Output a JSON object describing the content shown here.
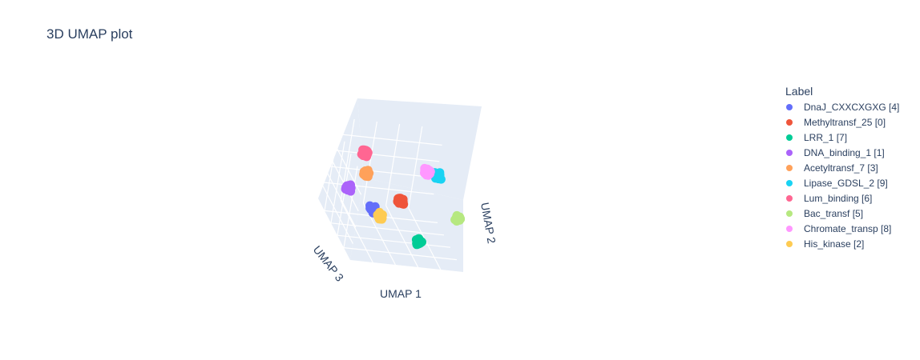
{
  "title": "3D UMAP plot",
  "legend": {
    "title": "Label"
  },
  "chart_data": {
    "type": "scatter",
    "dimensions": 3,
    "title": "3D UMAP plot",
    "axes": {
      "x": "UMAP 1",
      "y": "UMAP 2",
      "z": "UMAP 3"
    },
    "grid": true,
    "legend_placement": "right",
    "series": [
      {
        "name": "DnaJ_CXXCXGXG [4]",
        "color": "#636efa",
        "centroid": [
          0.3,
          0.3,
          0.48
        ]
      },
      {
        "name": "Methyltransf_25 [0]",
        "color": "#EF553B",
        "centroid": [
          0.52,
          0.46,
          0.45
        ]
      },
      {
        "name": "LRR_1 [7]",
        "color": "#00cc96",
        "centroid": [
          0.68,
          0.1,
          0.3
        ]
      },
      {
        "name": "DNA_binding_1 [1]",
        "color": "#ab63fa",
        "centroid": [
          0.08,
          0.48,
          0.55
        ]
      },
      {
        "name": "Acetyltransf_7 [3]",
        "color": "#FFA15A",
        "centroid": [
          0.22,
          0.68,
          0.55
        ]
      },
      {
        "name": "Lipase_GDSL_2 [9]",
        "color": "#19d3f3",
        "centroid": [
          0.78,
          0.86,
          0.38
        ]
      },
      {
        "name": "Lum_binding [6]",
        "color": "#FF6692",
        "centroid": [
          0.2,
          0.88,
          0.6
        ]
      },
      {
        "name": "Bac_transf [5]",
        "color": "#B6E880",
        "centroid": [
          0.95,
          0.5,
          0.2
        ]
      },
      {
        "name": "Chromate_transp [8]",
        "color": "#FF97FF",
        "centroid": [
          0.7,
          0.86,
          0.42
        ]
      },
      {
        "name": "His_kinase [2]",
        "color": "#FECB52",
        "centroid": [
          0.38,
          0.22,
          0.5
        ]
      }
    ]
  }
}
